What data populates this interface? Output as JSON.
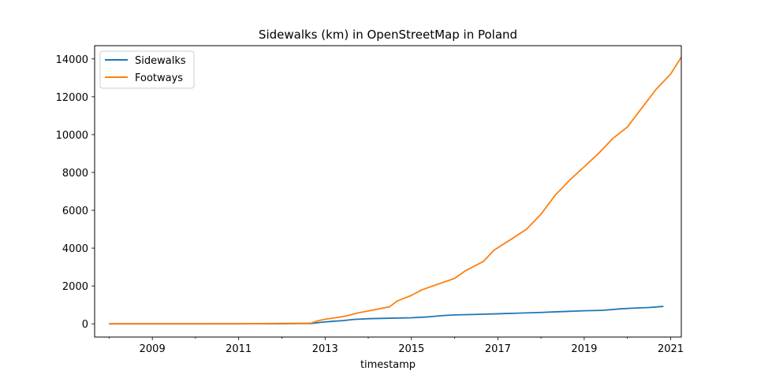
{
  "chart_data": {
    "type": "line",
    "title": "Sidewalks (km) in OpenStreetMap in Poland",
    "xlabel": "timestamp",
    "ylabel": "",
    "x_axis_type": "date",
    "xlim": [
      "2007-09-01",
      "2021-04-01"
    ],
    "ylim": [
      -700,
      14700
    ],
    "x_ticks": [
      {
        "date": "2009-01-01",
        "label": "2009"
      },
      {
        "date": "2011-01-01",
        "label": "2011"
      },
      {
        "date": "2013-01-01",
        "label": "2013"
      },
      {
        "date": "2015-01-01",
        "label": "2015"
      },
      {
        "date": "2017-01-01",
        "label": "2017"
      },
      {
        "date": "2019-01-01",
        "label": "2019"
      },
      {
        "date": "2021-01-01",
        "label": "2021"
      }
    ],
    "y_ticks": [
      {
        "value": 0,
        "label": "0"
      },
      {
        "value": 2000,
        "label": "2000"
      },
      {
        "value": 4000,
        "label": "4000"
      },
      {
        "value": 6000,
        "label": "6000"
      },
      {
        "value": 8000,
        "label": "8000"
      },
      {
        "value": 10000,
        "label": "10000"
      },
      {
        "value": 12000,
        "label": "12000"
      },
      {
        "value": 14000,
        "label": "14000"
      }
    ],
    "legend_position": "top-left",
    "grid": false,
    "series": [
      {
        "name": "Sidewalks",
        "color": "#1f77b4",
        "points": [
          [
            "2008-01-01",
            0
          ],
          [
            "2010-01-01",
            0
          ],
          [
            "2012-01-01",
            5
          ],
          [
            "2012-09-01",
            15
          ],
          [
            "2012-12-01",
            80
          ],
          [
            "2013-03-01",
            130
          ],
          [
            "2013-06-01",
            170
          ],
          [
            "2013-09-01",
            230
          ],
          [
            "2014-01-01",
            270
          ],
          [
            "2014-06-01",
            290
          ],
          [
            "2015-01-01",
            320
          ],
          [
            "2015-06-01",
            370
          ],
          [
            "2015-10-01",
            440
          ],
          [
            "2016-01-01",
            470
          ],
          [
            "2016-06-01",
            490
          ],
          [
            "2017-01-01",
            530
          ],
          [
            "2017-06-01",
            560
          ],
          [
            "2018-01-01",
            600
          ],
          [
            "2018-06-01",
            640
          ],
          [
            "2019-01-01",
            690
          ],
          [
            "2019-06-01",
            710
          ],
          [
            "2019-11-01",
            790
          ],
          [
            "2020-03-01",
            830
          ],
          [
            "2020-07-01",
            860
          ],
          [
            "2020-11-01",
            920
          ]
        ]
      },
      {
        "name": "Footways",
        "color": "#ff7f0e",
        "points": [
          [
            "2008-01-01",
            0
          ],
          [
            "2010-01-01",
            0
          ],
          [
            "2011-06-01",
            5
          ],
          [
            "2012-01-01",
            20
          ],
          [
            "2012-09-01",
            30
          ],
          [
            "2012-11-01",
            160
          ],
          [
            "2013-01-01",
            240
          ],
          [
            "2013-04-01",
            320
          ],
          [
            "2013-07-01",
            420
          ],
          [
            "2013-10-01",
            570
          ],
          [
            "2014-01-01",
            680
          ],
          [
            "2014-07-01",
            900
          ],
          [
            "2014-09-01",
            1200
          ],
          [
            "2015-01-01",
            1500
          ],
          [
            "2015-04-01",
            1800
          ],
          [
            "2015-07-01",
            2000
          ],
          [
            "2016-01-01",
            2400
          ],
          [
            "2016-04-01",
            2800
          ],
          [
            "2016-09-01",
            3300
          ],
          [
            "2016-12-01",
            3900
          ],
          [
            "2017-05-01",
            4500
          ],
          [
            "2017-09-01",
            5000
          ],
          [
            "2018-01-01",
            5800
          ],
          [
            "2018-05-01",
            6800
          ],
          [
            "2018-09-01",
            7600
          ],
          [
            "2019-01-01",
            8300
          ],
          [
            "2019-05-01",
            9000
          ],
          [
            "2019-09-01",
            9800
          ],
          [
            "2020-01-01",
            10400
          ],
          [
            "2020-05-01",
            11400
          ],
          [
            "2020-09-01",
            12400
          ],
          [
            "2021-01-01",
            13200
          ],
          [
            "2021-04-01",
            14100
          ]
        ]
      }
    ]
  }
}
